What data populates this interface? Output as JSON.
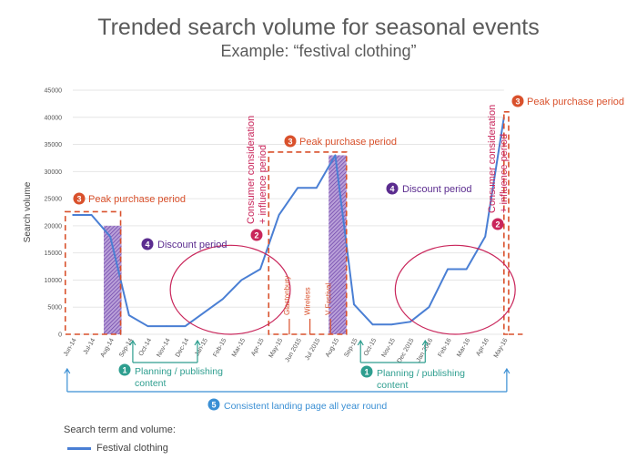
{
  "title": "Trended search volume for seasonal events",
  "subtitle": "Example: “festival clothing”",
  "colors": {
    "series": "#4a7fd4",
    "peak": "#d9512c",
    "discount": "#5b2c8f",
    "consider": "#c9265b",
    "planning": "#2e9e8f",
    "landing": "#3a8fd4"
  },
  "chart_data": {
    "type": "line",
    "title": "Trended search volume for seasonal events",
    "ylabel": "Search volume",
    "xlabel": "",
    "ylim": [
      0,
      45000
    ],
    "y_ticks": [
      0,
      5000,
      10000,
      15000,
      20000,
      25000,
      30000,
      35000,
      40000,
      45000
    ],
    "categories": [
      "Jun-14",
      "Jul-14",
      "Aug-14",
      "Sep-14",
      "Oct-14",
      "Nov-14",
      "Dec-14",
      "Jan-15",
      "Feb-15",
      "Mar-15",
      "Apr-15",
      "May-15",
      "Jun 2015",
      "Jul 2015",
      "Aug-15",
      "Sep-15",
      "Oct-15",
      "Nov-15",
      "Dec 2015",
      "Jan 2016",
      "Feb-16",
      "Mar-16",
      "Apr-16",
      "May-16"
    ],
    "series": [
      {
        "name": "Festival clothing",
        "values": [
          22000,
          22000,
          18000,
          3500,
          1500,
          1500,
          1500,
          4000,
          6500,
          10000,
          12000,
          22000,
          27000,
          27000,
          33000,
          5500,
          1800,
          1800,
          2300,
          5000,
          12000,
          12000,
          18000,
          40000
        ]
      }
    ],
    "events": [
      {
        "label": "Glastonbury",
        "x": 11.55
      },
      {
        "label": "Wireless",
        "x": 12.65
      },
      {
        "label": "V Festival",
        "x": 13.75
      }
    ],
    "discount_bands": [
      {
        "x_start": 1.65,
        "x_end": 2.6,
        "top": 20000
      },
      {
        "x_start": 13.65,
        "x_end": 14.6,
        "top": 33000
      }
    ],
    "peak_boxes": [
      {
        "x_start": -0.4,
        "x_end": 2.55,
        "top": 22600
      },
      {
        "x_start": 10.45,
        "x_end": 14.6,
        "top": 33600
      },
      {
        "x_start": 23,
        "x_end": 23.25,
        "top": 41000
      }
    ],
    "consider_ellipses": [
      {
        "cx": 8.4,
        "cy": 8200,
        "rx": 3.2,
        "ry": 8200
      },
      {
        "cx": 20.4,
        "cy": 8200,
        "rx": 3.2,
        "ry": 8200
      }
    ],
    "planning_spans": [
      {
        "x_start": 3.2,
        "x_end": 6.65
      },
      {
        "x_start": 15.35,
        "x_end": 18.8
      }
    ],
    "landing_span": {
      "x_start": -0.3,
      "x_end": 23.15
    }
  },
  "annotations": {
    "peak_left": {
      "num": "3",
      "text": "Peak purchase period"
    },
    "peak_mid": {
      "num": "3",
      "text": "Peak purchase period"
    },
    "peak_right": {
      "num": "3",
      "text": "Peak purchase period"
    },
    "discount_left": {
      "num": "4",
      "text": "Discount period"
    },
    "discount_right": {
      "num": "4",
      "text": "Discount period"
    },
    "consider_left": {
      "num": "2",
      "line1": "Consumer consideration",
      "line2": "+ influence period"
    },
    "consider_right": {
      "num": "2",
      "line1": "Consumer consideration",
      "line2": "+ influence period"
    },
    "planning_left": {
      "num": "1",
      "line1": "Planning / publishing",
      "line2": "content"
    },
    "planning_right": {
      "num": "1",
      "line1": "Planning / publishing",
      "line2": "content"
    },
    "landing": {
      "num": "5",
      "text": "Consistent landing page all year round"
    }
  },
  "legend": {
    "title": "Search term and volume:",
    "label": "Festival clothing"
  }
}
